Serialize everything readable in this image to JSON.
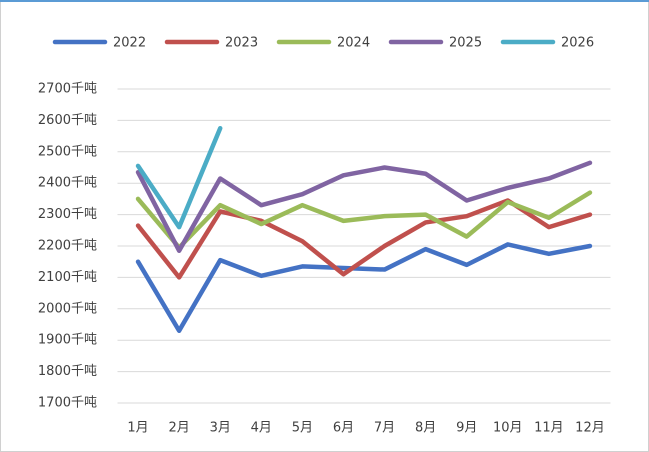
{
  "chart_data": {
    "type": "line",
    "categories": [
      "1月",
      "2月",
      "3月",
      "4月",
      "5月",
      "6月",
      "7月",
      "8月",
      "9月",
      "10月",
      "11月",
      "12月"
    ],
    "series": [
      {
        "name": "2022",
        "color": "#4472c4",
        "values": [
          2150,
          1930,
          2155,
          2105,
          2135,
          2130,
          2125,
          2190,
          2140,
          2205,
          2175,
          2200
        ]
      },
      {
        "name": "2023",
        "color": "#c0504d",
        "values": [
          2265,
          2100,
          2310,
          2280,
          2215,
          2110,
          2200,
          2275,
          2295,
          2345,
          2260,
          2300
        ]
      },
      {
        "name": "2024",
        "color": "#9bbb59",
        "values": [
          2350,
          2195,
          2330,
          2270,
          2330,
          2280,
          2295,
          2300,
          2230,
          2340,
          2290,
          2370
        ]
      },
      {
        "name": "2025",
        "color": "#8064a2",
        "values": [
          2435,
          2185,
          2415,
          2330,
          2365,
          2425,
          2450,
          2430,
          2345,
          2385,
          2415,
          2465
        ]
      },
      {
        "name": "2026",
        "color": "#4bacc6",
        "values": [
          2455,
          2260,
          2575,
          null,
          null,
          null,
          null,
          null,
          null,
          null,
          null,
          null
        ]
      }
    ],
    "ylim": [
      1700,
      2700
    ],
    "yticks": [
      {
        "value": 1700,
        "label": "1700千吨"
      },
      {
        "value": 1800,
        "label": "1800千吨"
      },
      {
        "value": 1900,
        "label": "1900千吨"
      },
      {
        "value": 2000,
        "label": "2000千吨"
      },
      {
        "value": 2100,
        "label": "2100千吨"
      },
      {
        "value": 2200,
        "label": "2200千吨"
      },
      {
        "value": 2300,
        "label": "2300千吨"
      },
      {
        "value": 2400,
        "label": "2400千吨"
      },
      {
        "value": 2500,
        "label": "2500千吨"
      },
      {
        "value": 2600,
        "label": "2600千吨"
      },
      {
        "value": 2700,
        "label": "2700千吨"
      }
    ],
    "grid": true,
    "legend": "top"
  }
}
